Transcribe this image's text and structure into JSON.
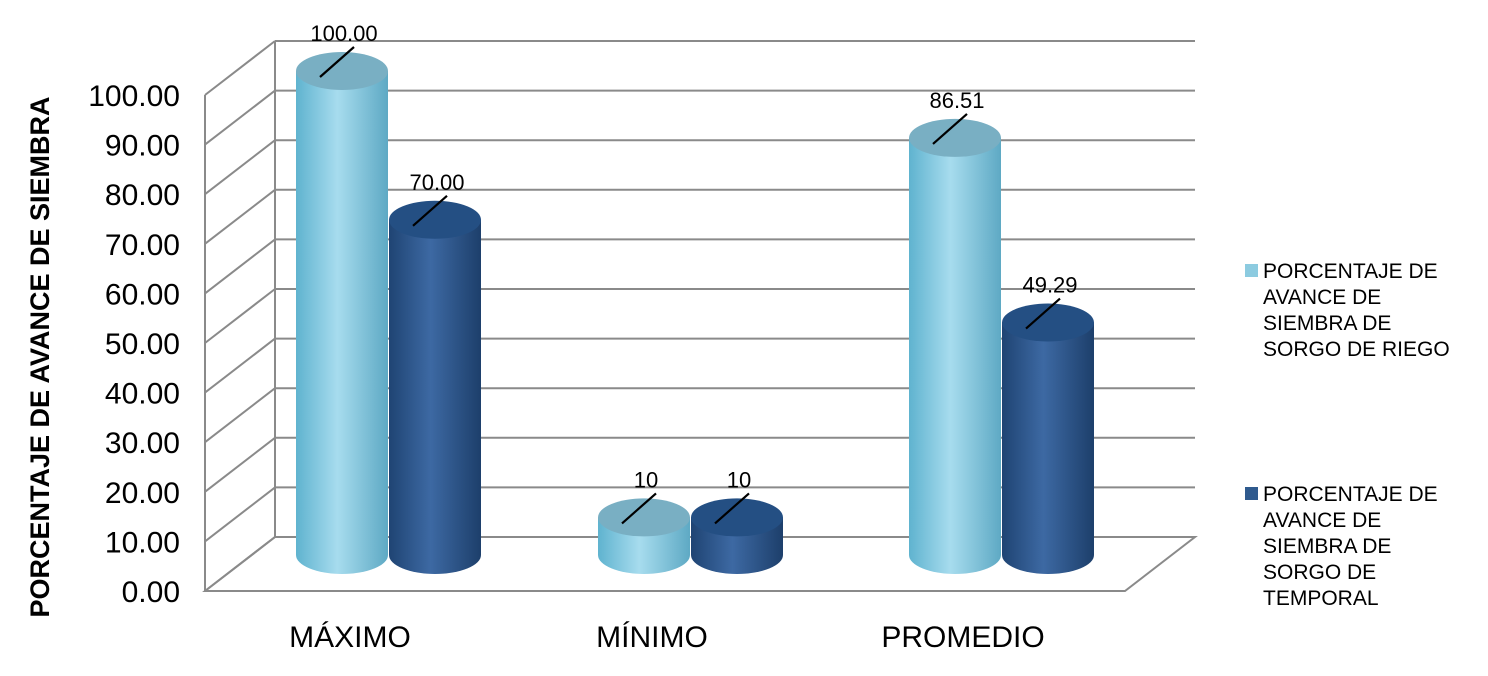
{
  "chart_data": {
    "type": "bar",
    "style": "3d-cylinder",
    "categories": [
      "MÁXIMO",
      "MÍNIMO",
      "PROMEDIO"
    ],
    "series": [
      {
        "name": "PORCENTAJE DE AVANCE DE SIEMBRA DE SORGO DE RIEGO",
        "name_lines": [
          "PORCENTAJE DE",
          "AVANCE DE",
          "SIEMBRA DE",
          "SORGO DE RIEGO"
        ],
        "values": [
          100,
          10,
          86.51
        ],
        "data_labels": [
          "100.00",
          "10",
          "86.51"
        ],
        "color": "#8ccbe0"
      },
      {
        "name": "PORCENTAJE DE AVANCE DE SIEMBRA DE SORGO DE TEMPORAL",
        "name_lines": [
          "PORCENTAJE DE",
          "AVANCE DE",
          "SIEMBRA DE",
          "SORGO DE",
          "TEMPORAL"
        ],
        "values": [
          70,
          10,
          49.29
        ],
        "data_labels": [
          "70.00",
          "10",
          "49.29"
        ],
        "color": "#2f5a8e"
      }
    ],
    "ylabel": "PORCENTAJE DE AVANCE DE SIEMBRA",
    "xlabel": "",
    "ylim": [
      0,
      100
    ],
    "yticks": [
      "0.00",
      "10.00",
      "20.00",
      "30.00",
      "40.00",
      "50.00",
      "60.00",
      "70.00",
      "80.00",
      "90.00",
      "100.00"
    ],
    "grid": true,
    "legend_position": "right"
  }
}
